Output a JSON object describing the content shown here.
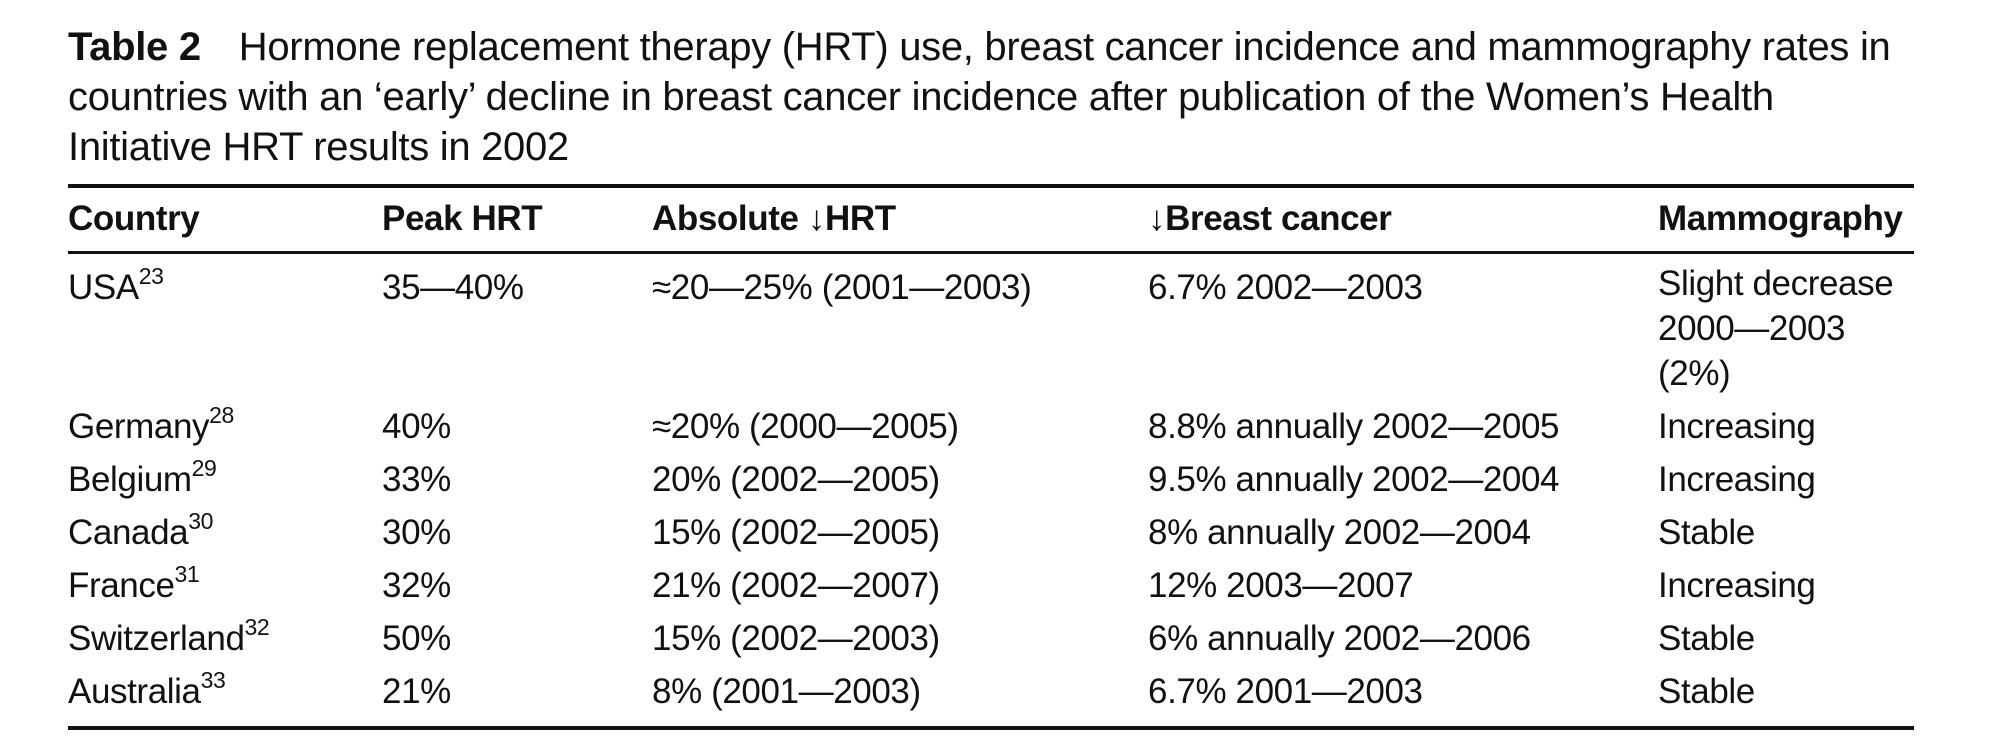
{
  "caption": {
    "label": "Table 2",
    "text": "Hormone replacement therapy (HRT) use, breast cancer incidence and mammography rates in countries with an ‘early’ decline in breast cancer incidence after publication of the Women’s Health Initiative HRT results in 2002"
  },
  "table": {
    "headers": {
      "country": "Country",
      "peak_hrt": "Peak HRT",
      "absolute_hrt": "Absolute ↓HRT",
      "breast_cancer": "↓Breast cancer",
      "mammography": "Mammography"
    },
    "rows": [
      {
        "country": "USA",
        "ref": "23",
        "peak_hrt": "35—40%",
        "absolute_hrt": "≈20—25% (2001—2003)",
        "breast_cancer": "6.7% 2002—2003",
        "mammography": "Slight decrease 2000—2003 (2%)"
      },
      {
        "country": "Germany",
        "ref": "28",
        "peak_hrt": "40%",
        "absolute_hrt": "≈20% (2000—2005)",
        "breast_cancer": "8.8% annually 2002—2005",
        "mammography": "Increasing"
      },
      {
        "country": "Belgium",
        "ref": "29",
        "peak_hrt": "33%",
        "absolute_hrt": "20% (2002—2005)",
        "breast_cancer": "9.5% annually 2002—2004",
        "mammography": "Increasing"
      },
      {
        "country": "Canada",
        "ref": "30",
        "peak_hrt": "30%",
        "absolute_hrt": "15% (2002—2005)",
        "breast_cancer": "8% annually 2002—2004",
        "mammography": "Stable"
      },
      {
        "country": "France",
        "ref": "31",
        "peak_hrt": "32%",
        "absolute_hrt": "21% (2002—2007)",
        "breast_cancer": "12% 2003—2007",
        "mammography": "Increasing"
      },
      {
        "country": "Switzerland",
        "ref": "32",
        "peak_hrt": "50%",
        "absolute_hrt": "15% (2002—2003)",
        "breast_cancer": "6% annually 2002—2006",
        "mammography": "Stable"
      },
      {
        "country": "Australia",
        "ref": "33",
        "peak_hrt": "21%",
        "absolute_hrt": "8% (2001—2003)",
        "breast_cancer": "6.7% 2001—2003",
        "mammography": "Stable"
      }
    ]
  }
}
